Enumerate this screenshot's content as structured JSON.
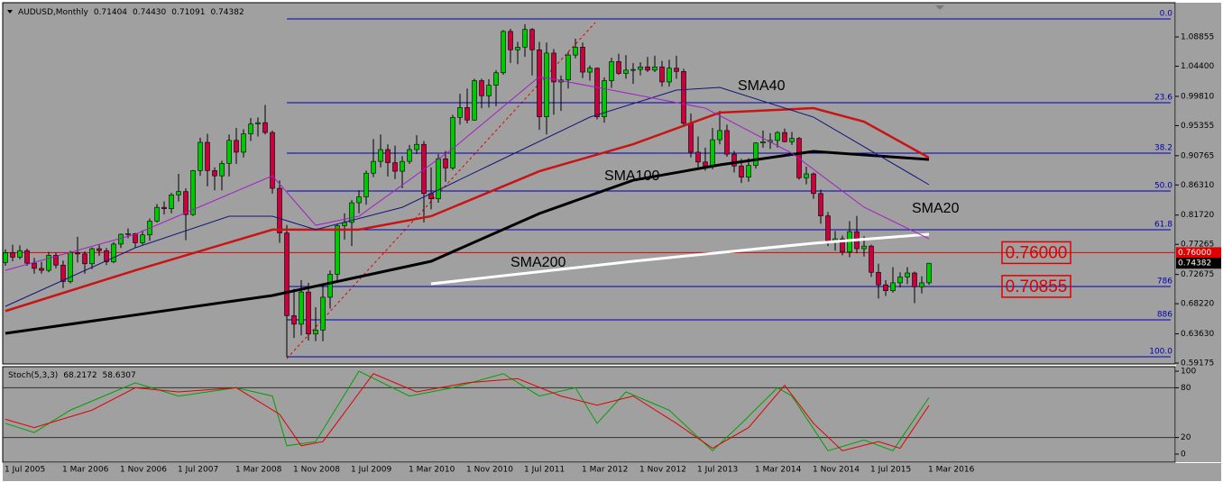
{
  "chart_data": [
    {
      "type": "candlestick",
      "title": "AUDUSD,Monthly",
      "last_bar_labels": [
        "0.71404",
        "0.74430",
        "0.71091",
        "0.74382"
      ],
      "categories": [
        "1 Jul 2005",
        null,
        null,
        null,
        null,
        null,
        null,
        null,
        "1 Mar 2006",
        null,
        null,
        null,
        null,
        null,
        null,
        null,
        "1 Nov 2006",
        null,
        null,
        null,
        null,
        null,
        null,
        null,
        "1 Jul 2007",
        null,
        null,
        null,
        null,
        null,
        null,
        null,
        "1 Mar 2008",
        null,
        null,
        null,
        null,
        null,
        null,
        null,
        "1 Nov 2008",
        null,
        null,
        null,
        null,
        null,
        null,
        null,
        "1 Jul 2009",
        null,
        null,
        null,
        null,
        null,
        null,
        null,
        "1 Mar 2010",
        null,
        null,
        null,
        null,
        null,
        null,
        null,
        "1 Nov 2010",
        null,
        null,
        null,
        null,
        null,
        null,
        null,
        "1 Jul 2011",
        null,
        null,
        null,
        null,
        null,
        null,
        null,
        "1 Mar 2012",
        null,
        null,
        null,
        null,
        null,
        null,
        null,
        "1 Nov 2012",
        null,
        null,
        null,
        null,
        null,
        null,
        null,
        "1 Jul 2013",
        null,
        null,
        null,
        null,
        null,
        null,
        null,
        "1 Mar 2014",
        null,
        null,
        null,
        null,
        null,
        null,
        null,
        "1 Nov 2014",
        null,
        null,
        null,
        null,
        null,
        null,
        null,
        "1 Jul 2015",
        null,
        null,
        null,
        null,
        null,
        null,
        null,
        "1 Mar 2016"
      ],
      "candles": [
        [
          0.745,
          0.765,
          0.74,
          0.76
        ],
        [
          0.76,
          0.772,
          0.747,
          0.753
        ],
        [
          0.753,
          0.771,
          0.75,
          0.763
        ],
        [
          0.763,
          0.766,
          0.74,
          0.744
        ],
        [
          0.744,
          0.752,
          0.728,
          0.736
        ],
        [
          0.736,
          0.746,
          0.728,
          0.733
        ],
        [
          0.733,
          0.761,
          0.73,
          0.756
        ],
        [
          0.756,
          0.76,
          0.736,
          0.741
        ],
        [
          0.741,
          0.748,
          0.706,
          0.716
        ],
        [
          0.716,
          0.763,
          0.713,
          0.76
        ],
        [
          0.76,
          0.784,
          0.745,
          0.758
        ],
        [
          0.758,
          0.762,
          0.728,
          0.743
        ],
        [
          0.743,
          0.768,
          0.735,
          0.766
        ],
        [
          0.766,
          0.773,
          0.755,
          0.763
        ],
        [
          0.763,
          0.767,
          0.741,
          0.746
        ],
        [
          0.746,
          0.776,
          0.744,
          0.773
        ],
        [
          0.773,
          0.789,
          0.767,
          0.788
        ],
        [
          0.788,
          0.797,
          0.782,
          0.789
        ],
        [
          0.789,
          0.79,
          0.768,
          0.775
        ],
        [
          0.775,
          0.794,
          0.772,
          0.787
        ],
        [
          0.787,
          0.812,
          0.778,
          0.808
        ],
        [
          0.808,
          0.834,
          0.806,
          0.829
        ],
        [
          0.829,
          0.838,
          0.818,
          0.827
        ],
        [
          0.827,
          0.851,
          0.82,
          0.848
        ],
        [
          0.848,
          0.88,
          0.838,
          0.853
        ],
        [
          0.853,
          0.858,
          0.779,
          0.818
        ],
        [
          0.818,
          0.886,
          0.816,
          0.885
        ],
        [
          0.885,
          0.935,
          0.877,
          0.928
        ],
        [
          0.928,
          0.941,
          0.861,
          0.885
        ],
        [
          0.885,
          0.89,
          0.855,
          0.877
        ],
        [
          0.877,
          0.9,
          0.855,
          0.896
        ],
        [
          0.896,
          0.94,
          0.876,
          0.931
        ],
        [
          0.931,
          0.95,
          0.895,
          0.913
        ],
        [
          0.913,
          0.948,
          0.905,
          0.941
        ],
        [
          0.941,
          0.965,
          0.93,
          0.956
        ],
        [
          0.956,
          0.966,
          0.937,
          0.958
        ],
        [
          0.958,
          0.985,
          0.94,
          0.943
        ],
        [
          0.943,
          0.946,
          0.85,
          0.858
        ],
        [
          0.858,
          0.87,
          0.775,
          0.79
        ],
        [
          0.79,
          0.802,
          0.601,
          0.664
        ],
        [
          0.664,
          0.705,
          0.63,
          0.651
        ],
        [
          0.651,
          0.718,
          0.634,
          0.7
        ],
        [
          0.7,
          0.714,
          0.626,
          0.636
        ],
        [
          0.636,
          0.677,
          0.625,
          0.642
        ],
        [
          0.642,
          0.71,
          0.625,
          0.692
        ],
        [
          0.692,
          0.733,
          0.675,
          0.727
        ],
        [
          0.727,
          0.803,
          0.716,
          0.801
        ],
        [
          0.801,
          0.82,
          0.78,
          0.806
        ],
        [
          0.806,
          0.84,
          0.77,
          0.836
        ],
        [
          0.836,
          0.855,
          0.82,
          0.845
        ],
        [
          0.845,
          0.885,
          0.833,
          0.881
        ],
        [
          0.881,
          0.933,
          0.875,
          0.899
        ],
        [
          0.899,
          0.94,
          0.89,
          0.917
        ],
        [
          0.917,
          0.925,
          0.876,
          0.897
        ],
        [
          0.897,
          0.923,
          0.872,
          0.884
        ],
        [
          0.884,
          0.907,
          0.858,
          0.899
        ],
        [
          0.899,
          0.924,
          0.895,
          0.917
        ],
        [
          0.917,
          0.939,
          0.91,
          0.925
        ],
        [
          0.925,
          0.93,
          0.806,
          0.85
        ],
        [
          0.85,
          0.89,
          0.826,
          0.842
        ],
        [
          0.842,
          0.91,
          0.836,
          0.903
        ],
        [
          0.903,
          0.915,
          0.868,
          0.889
        ],
        [
          0.889,
          0.97,
          0.886,
          0.966
        ],
        [
          0.966,
          1.002,
          0.955,
          0.981
        ],
        [
          0.981,
          1.01,
          0.957,
          0.962
        ],
        [
          0.962,
          1.025,
          0.961,
          1.022
        ],
        [
          1.022,
          1.025,
          0.98,
          0.999
        ],
        [
          0.999,
          1.024,
          0.981,
          1.015
        ],
        [
          1.015,
          1.038,
          0.983,
          1.034
        ],
        [
          1.034,
          1.099,
          1.031,
          1.097
        ],
        [
          1.097,
          1.101,
          1.049,
          1.069
        ],
        [
          1.069,
          1.081,
          1.047,
          1.073
        ],
        [
          1.073,
          1.108,
          1.058,
          1.1
        ],
        [
          1.1,
          1.102,
          1.03,
          1.069
        ],
        [
          1.069,
          1.081,
          0.947,
          0.967
        ],
        [
          0.967,
          1.08,
          0.94,
          1.064
        ],
        [
          1.064,
          1.07,
          0.97,
          1.02
        ],
        [
          1.02,
          1.03,
          0.976,
          1.023
        ],
        [
          1.023,
          1.066,
          1.01,
          1.061
        ],
        [
          1.061,
          1.086,
          1.056,
          1.073
        ],
        [
          1.073,
          1.08,
          1.026,
          1.035
        ],
        [
          1.035,
          1.045,
          1.022,
          1.041
        ],
        [
          1.041,
          1.042,
          0.963,
          0.967
        ],
        [
          0.967,
          1.027,
          0.958,
          1.022
        ],
        [
          1.022,
          1.057,
          1.011,
          1.051
        ],
        [
          1.051,
          1.063,
          1.031,
          1.033
        ],
        [
          1.033,
          1.061,
          1.025,
          1.038
        ],
        [
          1.038,
          1.049,
          1.017,
          1.039
        ],
        [
          1.039,
          1.05,
          1.03,
          1.043
        ],
        [
          1.043,
          1.058,
          1.035,
          1.038
        ],
        [
          1.038,
          1.06,
          1.035,
          1.043
        ],
        [
          1.043,
          1.052,
          1.013,
          1.02
        ],
        [
          1.02,
          1.054,
          1.013,
          1.041
        ],
        [
          1.041,
          1.06,
          1.025,
          1.036
        ],
        [
          1.036,
          1.04,
          0.952,
          0.957
        ],
        [
          0.957,
          0.972,
          0.905,
          0.913
        ],
        [
          0.913,
          0.937,
          0.89,
          0.898
        ],
        [
          0.898,
          0.92,
          0.885,
          0.892
        ],
        [
          0.892,
          0.95,
          0.887,
          0.932
        ],
        [
          0.932,
          0.976,
          0.925,
          0.946
        ],
        [
          0.946,
          0.955,
          0.906,
          0.91
        ],
        [
          0.91,
          0.915,
          0.882,
          0.892
        ],
        [
          0.892,
          0.903,
          0.866,
          0.875
        ],
        [
          0.875,
          0.904,
          0.868,
          0.893
        ],
        [
          0.893,
          0.928,
          0.888,
          0.927
        ],
        [
          0.927,
          0.946,
          0.92,
          0.929
        ],
        [
          0.929,
          0.942,
          0.918,
          0.931
        ],
        [
          0.931,
          0.945,
          0.92,
          0.943
        ],
        [
          0.943,
          0.949,
          0.928,
          0.929
        ],
        [
          0.929,
          0.944,
          0.924,
          0.934
        ],
        [
          0.934,
          0.936,
          0.871,
          0.874
        ],
        [
          0.874,
          0.891,
          0.864,
          0.88
        ],
        [
          0.88,
          0.882,
          0.842,
          0.85
        ],
        [
          0.85,
          0.856,
          0.804,
          0.816
        ],
        [
          0.816,
          0.822,
          0.77,
          0.778
        ],
        [
          0.778,
          0.793,
          0.763,
          0.781
        ],
        [
          0.781,
          0.786,
          0.756,
          0.761
        ],
        [
          0.761,
          0.808,
          0.753,
          0.792
        ],
        [
          0.792,
          0.816,
          0.759,
          0.766
        ],
        [
          0.766,
          0.785,
          0.754,
          0.77
        ],
        [
          0.77,
          0.772,
          0.723,
          0.73
        ],
        [
          0.73,
          0.743,
          0.69,
          0.711
        ],
        [
          0.711,
          0.718,
          0.694,
          0.702
        ],
        [
          0.702,
          0.738,
          0.699,
          0.714
        ],
        [
          0.714,
          0.73,
          0.707,
          0.723
        ],
        [
          0.723,
          0.738,
          0.712,
          0.729
        ],
        [
          0.729,
          0.731,
          0.683,
          0.708
        ],
        [
          0.708,
          0.724,
          0.698,
          0.714
        ],
        [
          0.71404,
          0.7443,
          0.71091,
          0.74382
        ]
      ],
      "up_color": "#00c800",
      "down_color": "#c8003c",
      "ylim": [
        0.589,
        1.138
      ],
      "yticks": [
        1.08855,
        {
          "value": 1.044,
          "label": "1.04400"
        },
        {
          "value": 0.9981,
          "label": "0.99810"
        },
        0.95355,
        0.90765,
        {
          "value": 0.8631,
          "label": "0.86310"
        },
        {
          "value": 0.8172,
          "label": "0.81720"
        },
        0.77265,
        0.72675,
        {
          "value": 0.6822,
          "label": "0.68220"
        },
        {
          "value": 0.6363,
          "label": "0.63630"
        },
        0.59175
      ],
      "fib_color": "#0000b4",
      "fib_levels": [
        {
          "label": "0.0",
          "price": 1.116
        },
        {
          "label": "23.6",
          "price": 0.9884
        },
        {
          "label": "38.2",
          "price": 0.9115
        },
        {
          "label": "50.0",
          "price": 0.8539
        },
        {
          "label": "61.8",
          "price": 0.7949
        },
        {
          "label": "786",
          "price": 0.7084
        },
        {
          "label": "886",
          "price": 0.6576
        },
        {
          "label": "100.0",
          "price": 0.6014
        }
      ],
      "price_levels": [
        {
          "value": 0.76,
          "label": "0.76000"
        },
        {
          "value": 0.70855,
          "label": "0.70855"
        }
      ],
      "current_price": {
        "value": 0.74382,
        "label": "0.74382"
      },
      "overlays": [
        {
          "name": "SMA200",
          "color": "#ffffff",
          "width": 3,
          "x": [
            59,
            87,
            112,
            128
          ],
          "values": [
            0.7125,
            0.7468,
            0.7743,
            0.788
          ]
        },
        {
          "name": "SMA100",
          "color": "#000000",
          "width": 3,
          "x": [
            0,
            37,
            59,
            74,
            87,
            99,
            112,
            128
          ],
          "values": [
            0.637,
            0.6947,
            0.7468,
            0.8196,
            0.8703,
            0.8937,
            0.9142,
            0.9019
          ]
        },
        {
          "color": "#c81414",
          "width": 2.5,
          "x": [
            0,
            18,
            37,
            49,
            59,
            74,
            87,
            99,
            112,
            119,
            128
          ],
          "values": [
            0.671,
            0.733,
            0.795,
            0.795,
            0.8155,
            0.884,
            0.9252,
            0.9733,
            0.9801,
            0.9595,
            0.9047
          ]
        },
        {
          "name": "SMA40",
          "color": "#14147a",
          "width": 1,
          "x": [
            0,
            18,
            31,
            37,
            43,
            55,
            68,
            81,
            93,
            99,
            112,
            128
          ],
          "values": [
            0.6782,
            0.7674,
            0.8155,
            0.8155,
            0.795,
            0.829,
            0.8978,
            0.9664,
            1.0076,
            1.0117,
            0.9664,
            0.8635
          ]
        },
        {
          "name": "SMA20",
          "color": "#a01ec8",
          "width": 1,
          "x": [
            0,
            18,
            37,
            43,
            49,
            62,
            74,
            84,
            97,
            109,
            119,
            128
          ],
          "values": [
            0.733,
            0.788,
            0.877,
            0.8017,
            0.8155,
            0.9184,
            1.0282,
            1.0076,
            0.9801,
            0.9115,
            0.8292,
            0.7811
          ]
        }
      ]
    },
    {
      "type": "line",
      "title": "Stoch(5,3,3)",
      "ylim": [
        0,
        100
      ],
      "yticks": [
        0,
        20,
        80,
        100
      ],
      "levels": [
        20,
        80
      ],
      "series": [
        {
          "color": "#00a000",
          "x": [
            0,
            4,
            9,
            18,
            24,
            32,
            37,
            39,
            43,
            49,
            56,
            62,
            69,
            74,
            79,
            82,
            86,
            92,
            98,
            102,
            107,
            109,
            114,
            119,
            123,
            128
          ],
          "values": [
            37,
            26,
            53,
            86,
            70,
            80,
            70,
            10,
            15,
            100,
            70,
            80,
            97,
            70,
            80,
            37,
            75,
            53,
            4,
            37,
            80,
            70,
            4,
            17,
            4,
            68.2172
          ]
        },
        {
          "color": "#e00000",
          "x": [
            0,
            4,
            12,
            18,
            24,
            32,
            38,
            41,
            44,
            51,
            57,
            64,
            71,
            77,
            82,
            87,
            93,
            98,
            103,
            108,
            112,
            116,
            121,
            124,
            128
          ],
          "values": [
            42,
            32,
            53,
            80,
            75,
            80,
            48,
            10,
            15,
            97,
            75,
            86,
            91,
            70,
            59,
            70,
            37,
            7,
            32,
            83,
            37,
            4,
            15,
            7,
            58.6307
          ]
        }
      ]
    }
  ]
}
